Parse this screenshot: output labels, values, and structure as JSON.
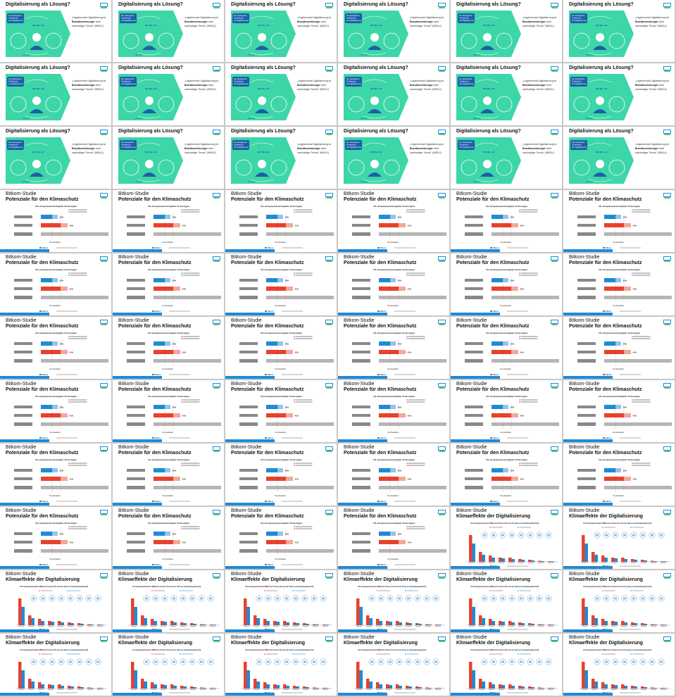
{
  "slide_types": {
    "digital": {
      "title": "Digitalisierung als Lösung?",
      "text_parts": [
        "„Ungebremste Digitalisierung",
        "ist",
        "Brandbeschleuniger",
        "nicht",
        "nachhaltiger Trends\" (WBGU)"
      ],
      "art_labels": [
        "Der ökologische",
        "Fußabdruck",
        "der Digitalisierung",
        "800 Mio. kB",
        "300 Mio."
      ]
    },
    "potenziale": {
      "title_line1": "Bitkom-Studie",
      "title_line2": "Potenziale für den Klimaschutz",
      "chart_title": "CO₂-Einsparpotenzial digitaler Technologien",
      "bar_labels": [
        "-20%",
        "-41%"
      ],
      "sub_label": "CO₂-Reduktion",
      "source": "Bitkom"
    },
    "klima": {
      "title_line1": "Bitkom-Studie",
      "title_line2": "Klimaeffekte der Digitalisierung",
      "chart_title": "CO₂-Einsparpotenzial in Millionen Tonnen CO₂e (in der Jahr pro Anwendungsbereich)",
      "source": "Bitkom"
    }
  },
  "slides": [
    "digital",
    "digital",
    "digital",
    "digital",
    "digital",
    "digital",
    "digital",
    "digital",
    "digital",
    "digital",
    "digital",
    "digital",
    "digital",
    "digital",
    "digital",
    "digital",
    "digital",
    "digital",
    "potenziale",
    "potenziale",
    "potenziale",
    "potenziale",
    "potenziale",
    "potenziale",
    "potenziale",
    "potenziale",
    "potenziale",
    "potenziale",
    "potenziale",
    "potenziale",
    "potenziale",
    "potenziale",
    "potenziale",
    "potenziale",
    "potenziale",
    "potenziale",
    "potenziale",
    "potenziale",
    "potenziale",
    "potenziale",
    "potenziale",
    "potenziale",
    "potenziale",
    "potenziale",
    "potenziale",
    "potenziale",
    "potenziale",
    "potenziale",
    "potenziale",
    "potenziale",
    "potenziale",
    "potenziale",
    "klima",
    "klima",
    "klima",
    "klima",
    "klima",
    "klima",
    "klima",
    "klima",
    "klima",
    "klima",
    "klima",
    "klima",
    "klima",
    "klima"
  ],
  "colors": {
    "teal": "#3dd6a8",
    "blue": "#1f8ad6",
    "red": "#e8412c",
    "gray": "#b5b5b5"
  }
}
